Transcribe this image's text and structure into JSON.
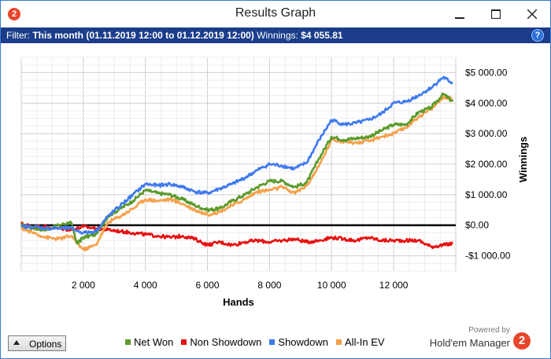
{
  "window": {
    "title": "Results Graph",
    "app_icon_text": "2"
  },
  "filter": {
    "label": "Filter:",
    "period": "This month (01.11.2019 12:00 to 01.12.2019 12:00)",
    "winnings_label": "Winnings:",
    "winnings_value": "$4 055.81",
    "help_icon": "?"
  },
  "footer": {
    "options_label": "Options",
    "powered_by": "Powered by",
    "brand_name": "Hold'em Manager",
    "brand_logo_text": "2"
  },
  "colors": {
    "net_won": "#5a9a2a",
    "non_showdown": "#e81010",
    "showdown": "#3f7af0",
    "all_in_ev": "#f5a04a",
    "filter_bar": "#1b3d8a"
  },
  "chart_data": {
    "type": "line",
    "xlabel": "Hands",
    "ylabel": "Winnings",
    "xlim": [
      0,
      14000
    ],
    "ylim": [
      -1500,
      5500
    ],
    "x_ticks": [
      2000,
      4000,
      6000,
      8000,
      10000,
      12000
    ],
    "x_tick_labels": [
      "2 000",
      "4 000",
      "6 000",
      "8 000",
      "10 000",
      "12 000"
    ],
    "y_ticks": [
      5000,
      4000,
      3000,
      2000,
      1000,
      0,
      -1000
    ],
    "y_tick_labels": [
      "$5 000.00",
      "$4 000.00",
      "$3 000.00",
      "$2 000.00",
      "$1 000.00",
      "$0.00",
      "-$1 000.00"
    ],
    "grid": true,
    "legend": "bottom",
    "series": [
      {
        "name": "Net Won",
        "color": "#5a9a2a",
        "x": [
          0,
          400,
          800,
          1200,
          1600,
          1800,
          2000,
          2400,
          2800,
          3200,
          3600,
          4000,
          4400,
          4800,
          5200,
          5600,
          6000,
          6400,
          6800,
          7200,
          7600,
          8000,
          8400,
          8800,
          9200,
          9600,
          10000,
          10400,
          10800,
          11200,
          11600,
          12000,
          12400,
          12800,
          13200,
          13600,
          13900
        ],
        "y": [
          0,
          -100,
          -150,
          0,
          100,
          -600,
          -400,
          -300,
          300,
          550,
          800,
          1150,
          1050,
          1000,
          850,
          650,
          500,
          550,
          800,
          1000,
          1250,
          1450,
          1450,
          1250,
          1400,
          2200,
          2900,
          2800,
          2850,
          2900,
          3100,
          3300,
          3300,
          3700,
          3850,
          4300,
          4050
        ]
      },
      {
        "name": "Non Showdown",
        "color": "#e81010",
        "x": [
          0,
          400,
          800,
          1200,
          1600,
          2000,
          2400,
          2800,
          3200,
          3600,
          4000,
          4400,
          4800,
          5200,
          5600,
          6000,
          6400,
          6800,
          7200,
          7600,
          8000,
          8400,
          8800,
          9200,
          9600,
          10000,
          10400,
          10800,
          11200,
          11600,
          12000,
          12400,
          12800,
          13200,
          13600,
          13900
        ],
        "y": [
          50,
          -50,
          -50,
          -100,
          -150,
          -50,
          -100,
          -150,
          -200,
          -250,
          -300,
          -350,
          -400,
          -350,
          -450,
          -650,
          -550,
          -650,
          -550,
          -500,
          -550,
          -500,
          -450,
          -550,
          -500,
          -400,
          -450,
          -500,
          -400,
          -500,
          -500,
          -500,
          -500,
          -700,
          -650,
          -600
        ]
      },
      {
        "name": "Showdown",
        "color": "#3f7af0",
        "x": [
          0,
          400,
          800,
          1200,
          1600,
          2000,
          2400,
          2800,
          3200,
          3600,
          4000,
          4400,
          4800,
          5200,
          5600,
          6000,
          6400,
          6800,
          7200,
          7600,
          8000,
          8400,
          8800,
          9200,
          9600,
          10000,
          10400,
          10800,
          11200,
          11600,
          12000,
          12400,
          12800,
          13200,
          13600,
          13900
        ],
        "y": [
          -50,
          -50,
          -100,
          -100,
          -100,
          -250,
          -200,
          300,
          650,
          1000,
          1350,
          1300,
          1350,
          1250,
          1100,
          1050,
          1200,
          1350,
          1550,
          1800,
          2000,
          1950,
          1850,
          2050,
          2800,
          3450,
          3300,
          3350,
          3450,
          3650,
          4000,
          4050,
          4250,
          4500,
          4850,
          4650
        ]
      },
      {
        "name": "All-In EV",
        "color": "#f5a04a",
        "x": [
          0,
          400,
          800,
          1200,
          1600,
          2000,
          2400,
          2800,
          3200,
          3600,
          4000,
          4400,
          4800,
          5200,
          5600,
          6000,
          6400,
          6800,
          7200,
          7600,
          8000,
          8400,
          8800,
          9200,
          9600,
          10000,
          10400,
          10800,
          11200,
          11600,
          12000,
          12400,
          12800,
          13200,
          13600,
          13900
        ],
        "y": [
          -100,
          -250,
          -400,
          -450,
          -350,
          -800,
          -650,
          100,
          300,
          550,
          850,
          800,
          850,
          700,
          500,
          350,
          450,
          650,
          850,
          1100,
          1150,
          1250,
          1050,
          1300,
          1950,
          2800,
          2750,
          2700,
          2750,
          2900,
          3000,
          3200,
          3550,
          3800,
          4200,
          4150
        ]
      }
    ]
  }
}
